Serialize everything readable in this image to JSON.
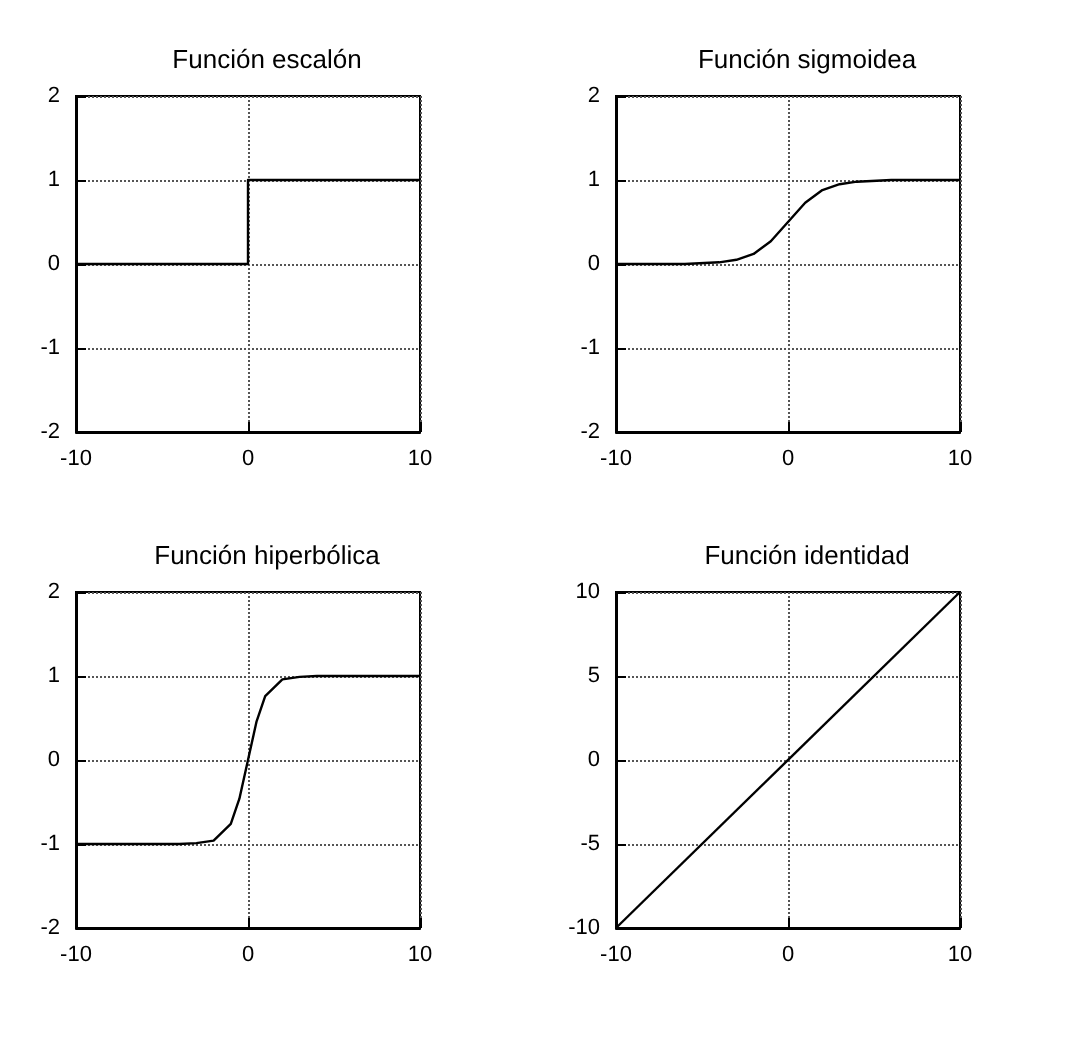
{
  "chart_data": [
    {
      "type": "line",
      "title": "Función escalón",
      "x": [
        -10,
        0,
        0,
        10
      ],
      "series": [
        {
          "color": "#000000",
          "values": [
            0,
            0,
            1,
            1
          ]
        }
      ],
      "xlim": [
        -10,
        10
      ],
      "xticks": [
        -10,
        0,
        10
      ],
      "ylim": [
        -2,
        2
      ],
      "yticks": [
        -2,
        -1,
        0,
        1,
        2
      ],
      "grid": true,
      "marker": "none",
      "line_style": "solid"
    },
    {
      "type": "line",
      "title": "Función sigmoidea",
      "x": [
        -10,
        -6,
        -4,
        -3,
        -2,
        -1,
        0,
        1,
        2,
        3,
        4,
        6,
        10
      ],
      "series": [
        {
          "color": "#000000",
          "values": [
            0,
            0,
            0.02,
            0.05,
            0.12,
            0.27,
            0.5,
            0.73,
            0.88,
            0.95,
            0.98,
            1,
            1
          ]
        }
      ],
      "xlim": [
        -10,
        10
      ],
      "xticks": [
        -10,
        0,
        10
      ],
      "ylim": [
        -2,
        2
      ],
      "yticks": [
        -2,
        -1,
        0,
        1,
        2
      ],
      "grid": true,
      "marker": "none",
      "line_style": "solid"
    },
    {
      "type": "line",
      "title": "Función hiperbólica",
      "x": [
        -10,
        -4,
        -3,
        -2,
        -1,
        -0.5,
        0,
        0.5,
        1,
        2,
        3,
        4,
        10
      ],
      "series": [
        {
          "color": "#000000",
          "values": [
            -1,
            -1,
            -0.99,
            -0.96,
            -0.76,
            -0.46,
            0,
            0.46,
            0.76,
            0.96,
            0.99,
            1,
            1
          ]
        }
      ],
      "xlim": [
        -10,
        10
      ],
      "xticks": [
        -10,
        0,
        10
      ],
      "ylim": [
        -2,
        2
      ],
      "yticks": [
        -2,
        -1,
        0,
        1,
        2
      ],
      "grid": true,
      "marker": "none",
      "line_style": "solid"
    },
    {
      "type": "line",
      "title": "Función identidad",
      "x": [
        -10,
        10
      ],
      "series": [
        {
          "color": "#000000",
          "values": [
            -10,
            10
          ]
        }
      ],
      "xlim": [
        -10,
        10
      ],
      "xticks": [
        -10,
        0,
        10
      ],
      "ylim": [
        -10,
        10
      ],
      "yticks": [
        -10,
        -5,
        0,
        5,
        10
      ],
      "grid": true,
      "marker": "none",
      "line_style": "solid"
    }
  ]
}
